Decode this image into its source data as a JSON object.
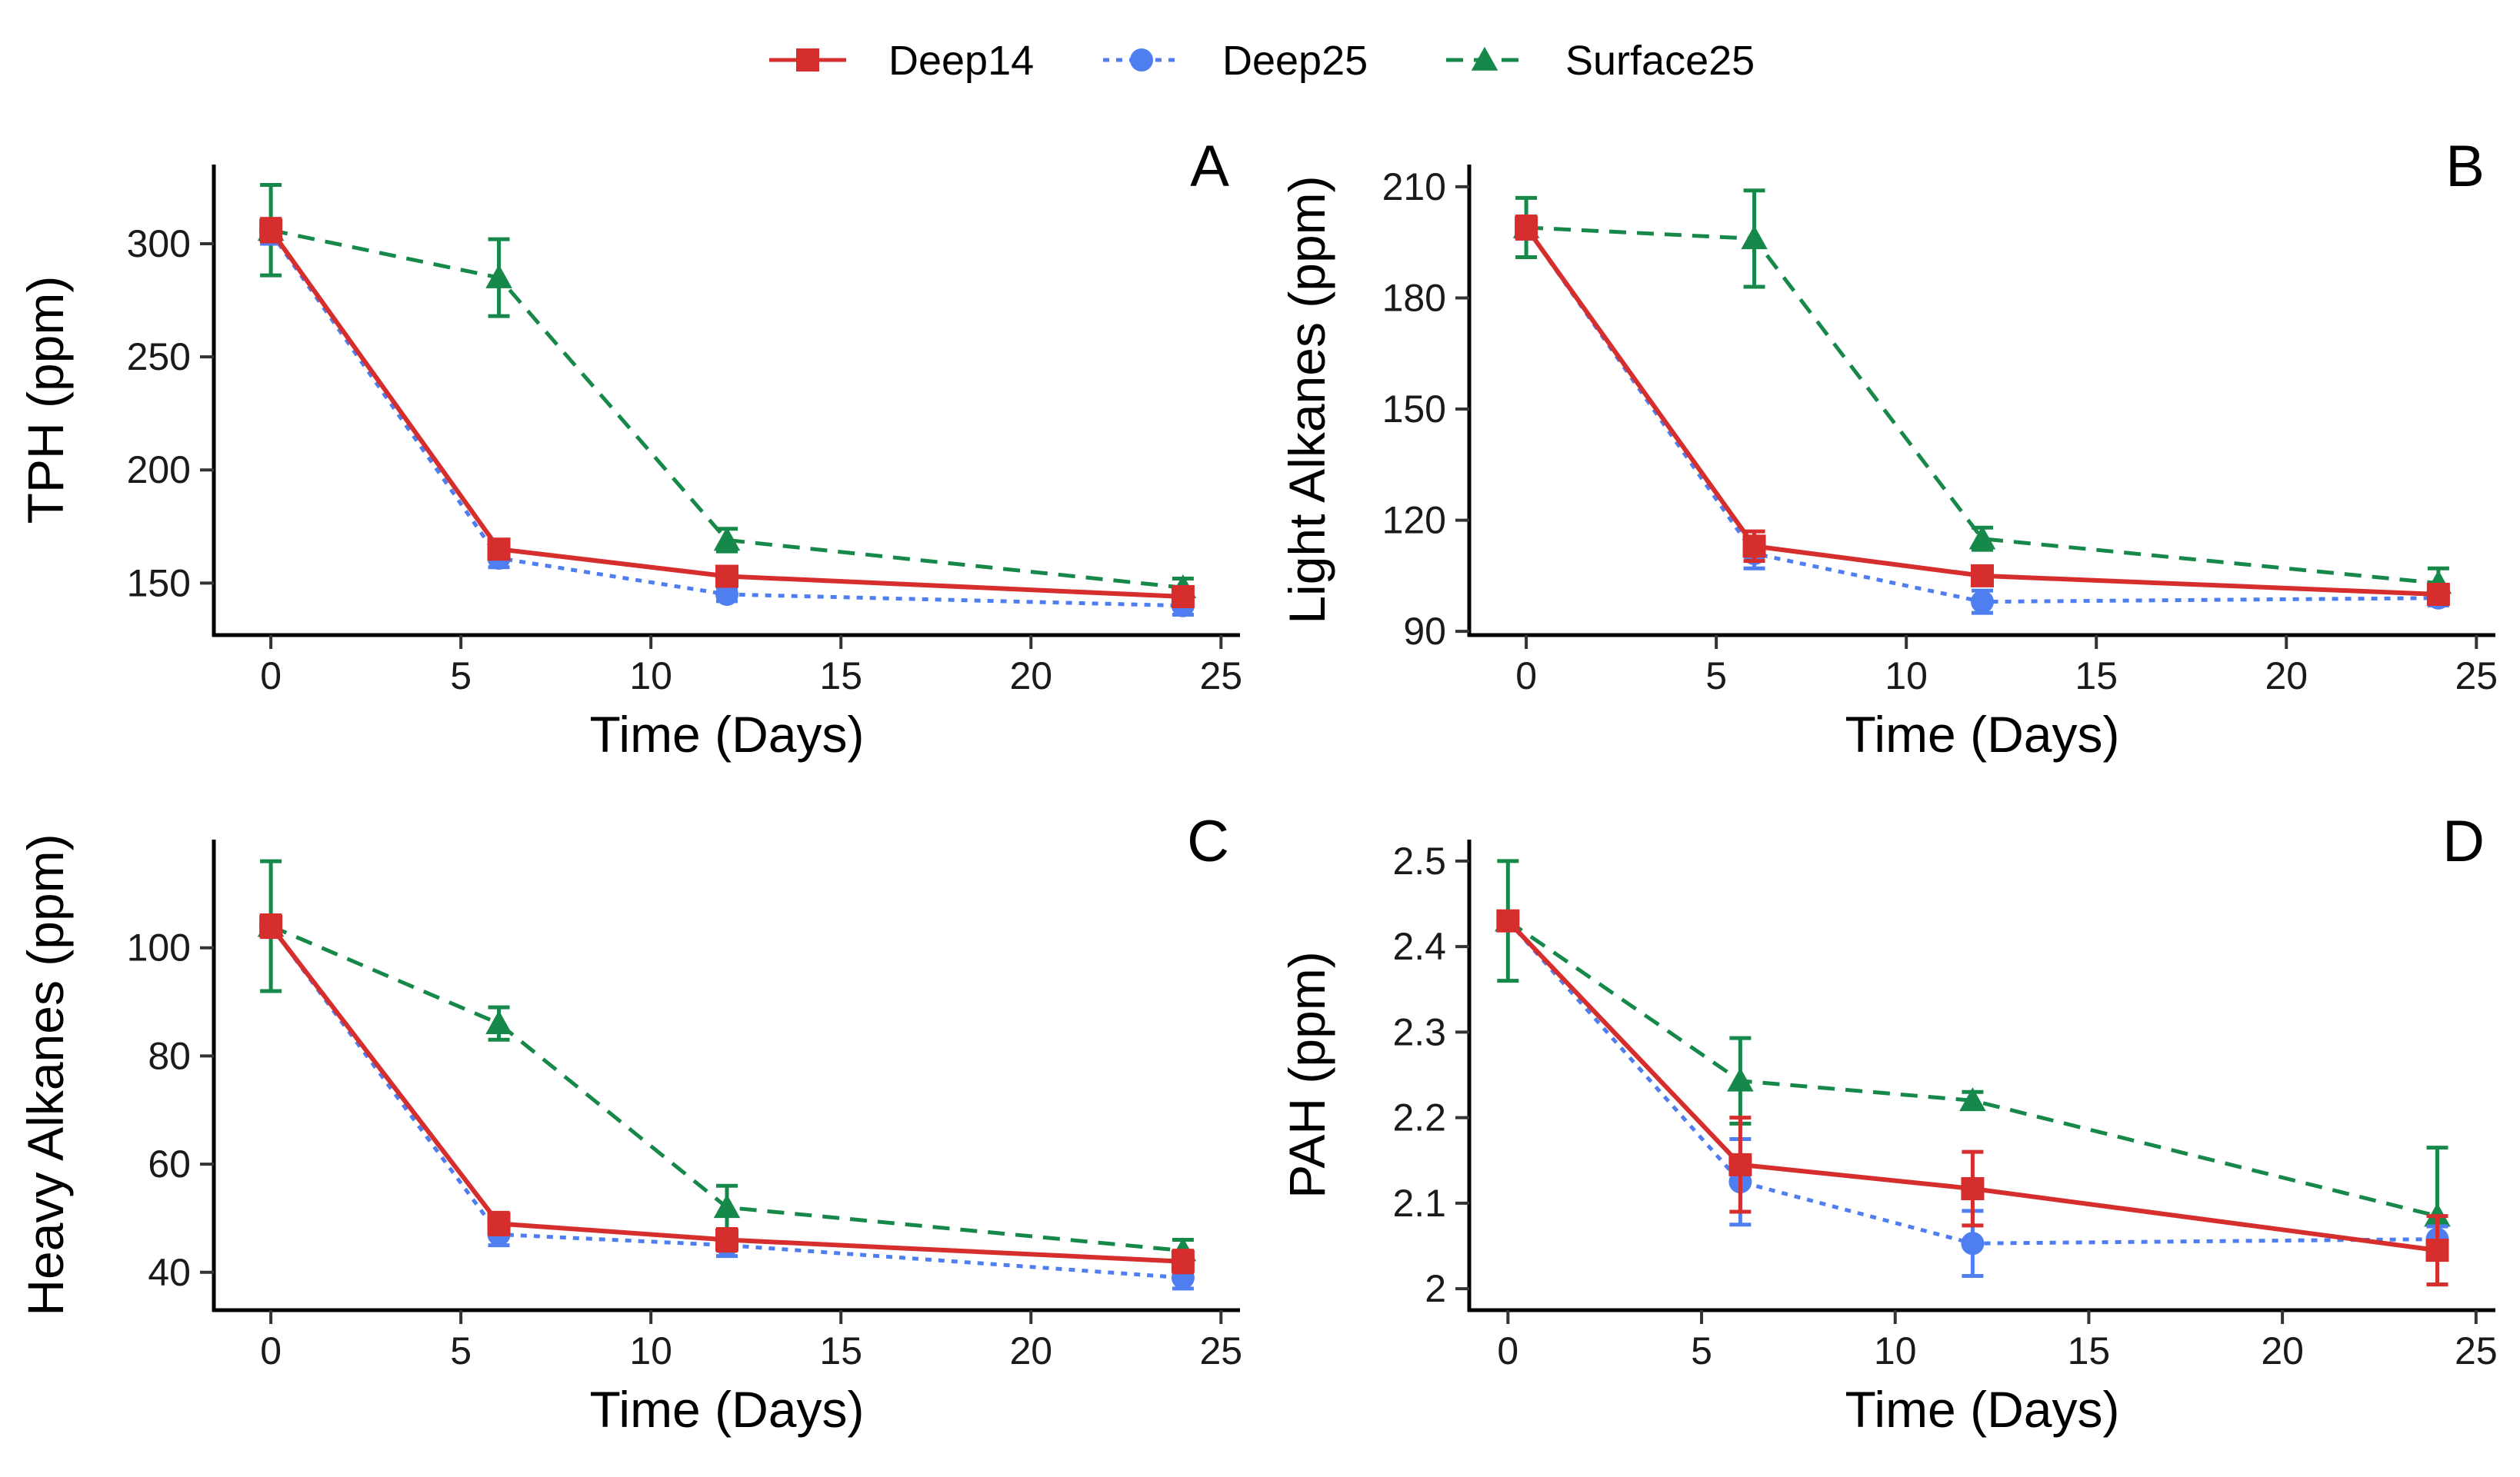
{
  "legend": [
    {
      "name": "Deep14",
      "color": "#d62d2d",
      "dash": "solid",
      "marker": "square"
    },
    {
      "name": "Deep25",
      "color": "#4f7ef0",
      "dash": "dotted",
      "marker": "circle"
    },
    {
      "name": "Surface25",
      "color": "#16894a",
      "dash": "dashed",
      "marker": "triangle"
    }
  ],
  "chart_data": [
    {
      "type": "line",
      "panel": "A",
      "xlabel": "Time (Days)",
      "ylabel": "TPH (ppm)",
      "x": [
        0,
        6,
        12,
        24
      ],
      "xlim": [
        -1.5,
        25.5
      ],
      "ylim": [
        127,
        335
      ],
      "xticks": [
        0,
        5,
        10,
        15,
        20,
        25
      ],
      "yticks": [
        150,
        200,
        250,
        300
      ],
      "grid": false,
      "series": [
        {
          "name": "Deep14",
          "values": [
            306,
            165,
            153,
            144
          ],
          "errors": [
            5,
            4,
            4,
            3
          ]
        },
        {
          "name": "Deep25",
          "values": [
            305,
            161,
            145,
            140
          ],
          "errors": [
            5,
            4,
            3,
            4
          ]
        },
        {
          "name": "Surface25",
          "values": [
            306,
            285,
            169,
            148
          ],
          "errors": [
            20,
            17,
            5,
            4
          ]
        }
      ]
    },
    {
      "type": "line",
      "panel": "B",
      "xlabel": "Time (Days)",
      "ylabel": "Light Alkanes (ppm)",
      "x": [
        0,
        6,
        12,
        24
      ],
      "xlim": [
        -1.5,
        25.5
      ],
      "ylim": [
        89,
        216
      ],
      "xticks": [
        0,
        5,
        10,
        15,
        20,
        25
      ],
      "yticks": [
        90,
        120,
        150,
        180,
        210
      ],
      "grid": false,
      "series": [
        {
          "name": "Deep14",
          "values": [
            199,
            113,
            105,
            100
          ],
          "errors": [
            3,
            4,
            2,
            2
          ]
        },
        {
          "name": "Deep25",
          "values": [
            199,
            111,
            98,
            99
          ],
          "errors": [
            3,
            4,
            3,
            2
          ]
        },
        {
          "name": "Surface25",
          "values": [
            199,
            196,
            115,
            103
          ],
          "errors": [
            8,
            13,
            3,
            4
          ]
        }
      ]
    },
    {
      "type": "line",
      "panel": "C",
      "xlabel": "Time (Days)",
      "ylabel": "Heavy Alkanes (ppm)",
      "x": [
        0,
        6,
        12,
        24
      ],
      "xlim": [
        -1.5,
        25.5
      ],
      "ylim": [
        33,
        120
      ],
      "xticks": [
        0,
        5,
        10,
        15,
        20,
        25
      ],
      "yticks": [
        40,
        60,
        80,
        100
      ],
      "grid": false,
      "series": [
        {
          "name": "Deep14",
          "values": [
            104,
            49,
            46,
            42
          ],
          "errors": [
            2,
            2,
            2,
            2
          ]
        },
        {
          "name": "Deep25",
          "values": [
            104,
            47,
            45,
            39
          ],
          "errors": [
            2,
            2,
            2,
            2
          ]
        },
        {
          "name": "Surface25",
          "values": [
            104,
            86,
            52,
            44
          ],
          "errors": [
            12,
            3,
            4,
            2
          ]
        }
      ]
    },
    {
      "type": "line",
      "panel": "D",
      "xlabel": "Time (Days)",
      "ylabel": "PAH (ppm)",
      "x": [
        0,
        6,
        12,
        24
      ],
      "xlim": [
        -1.0,
        25.5
      ],
      "ylim": [
        1.975,
        2.525
      ],
      "xticks": [
        0,
        5,
        10,
        15,
        20,
        25
      ],
      "yticks": [
        2.0,
        2.1,
        2.2,
        2.3,
        2.4,
        2.5
      ],
      "grid": false,
      "series": [
        {
          "name": "Deep14",
          "values": [
            2.43,
            2.145,
            2.117,
            2.045
          ],
          "errors": [
            0.01,
            0.055,
            0.043,
            0.04
          ]
        },
        {
          "name": "Deep25",
          "values": [
            2.43,
            2.125,
            2.053,
            2.058
          ],
          "errors": [
            0.01,
            0.05,
            0.038,
            0.015
          ]
        },
        {
          "name": "Surface25",
          "values": [
            2.43,
            2.243,
            2.22,
            2.085
          ],
          "errors": [
            0.07,
            0.05,
            0.01,
            0.08
          ]
        }
      ]
    }
  ]
}
